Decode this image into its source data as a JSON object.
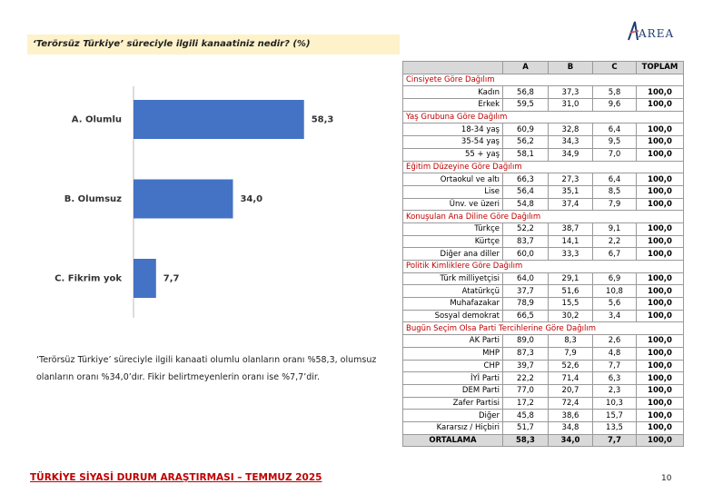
{
  "header": {
    "question": "‘Terörsüz Türkiye’ süreciyle ilgili kanaatiniz nedir? (%)",
    "logo": "AREA"
  },
  "chart_data": {
    "type": "bar",
    "categories": [
      "A. Olumlu",
      "B. Olumsuz",
      "C. Fikrim yok"
    ],
    "values": [
      58.3,
      34.0,
      7.7
    ],
    "value_labels": [
      "58,3",
      "34,0",
      "7,7"
    ],
    "color": "#4472c4"
  },
  "paragraph": "‘Terörsüz Türkiye’ süreciyle ilgili kanaati olumlu olanların oranı %58,3, olumsuz olanların oranı %34,0’dır. Fikir belirtmeyenlerin oranı ise %7,7’dir.",
  "table": {
    "columns": [
      "A",
      "B",
      "C",
      "TOPLAM"
    ],
    "groups": [
      {
        "title": "Cinsiyete Göre Dağılım",
        "rows": [
          [
            "Kadın",
            "56,8",
            "37,3",
            "5,8",
            "100,0"
          ],
          [
            "Erkek",
            "59,5",
            "31,0",
            "9,6",
            "100,0"
          ]
        ]
      },
      {
        "title": "Yaş Grubuna Göre Dağılım",
        "rows": [
          [
            "18-34 yaş",
            "60,9",
            "32,8",
            "6,4",
            "100,0"
          ],
          [
            "35-54 yaş",
            "56,2",
            "34,3",
            "9,5",
            "100,0"
          ],
          [
            "55 + yaş",
            "58,1",
            "34,9",
            "7,0",
            "100,0"
          ]
        ]
      },
      {
        "title": "Eğitim Düzeyine Göre Dağılım",
        "rows": [
          [
            "Ortaokul ve altı",
            "66,3",
            "27,3",
            "6,4",
            "100,0"
          ],
          [
            "Lise",
            "56,4",
            "35,1",
            "8,5",
            "100,0"
          ],
          [
            "Ünv. ve üzeri",
            "54,8",
            "37,4",
            "7,9",
            "100,0"
          ]
        ]
      },
      {
        "title": "Konuşulan Ana Diline Göre Dağılım",
        "rows": [
          [
            "Türkçe",
            "52,2",
            "38,7",
            "9,1",
            "100,0"
          ],
          [
            "Kürtçe",
            "83,7",
            "14,1",
            "2,2",
            "100,0"
          ],
          [
            "Diğer ana diller",
            "60,0",
            "33,3",
            "6,7",
            "100,0"
          ]
        ]
      },
      {
        "title": "Politik Kimliklere Göre Dağılım",
        "rows": [
          [
            "Türk milliyetçisi",
            "64,0",
            "29,1",
            "6,9",
            "100,0"
          ],
          [
            "Atatürkçü",
            "37,7",
            "51,6",
            "10,8",
            "100,0"
          ],
          [
            "Muhafazakar",
            "78,9",
            "15,5",
            "5,6",
            "100,0"
          ],
          [
            "Sosyal demokrat",
            "66,5",
            "30,2",
            "3,4",
            "100,0"
          ]
        ]
      },
      {
        "title": "Bugün Seçim Olsa Parti Tercihlerine Göre Dağılım",
        "rows": [
          [
            "AK Parti",
            "89,0",
            "8,3",
            "2,6",
            "100,0"
          ],
          [
            "MHP",
            "87,3",
            "7,9",
            "4,8",
            "100,0"
          ],
          [
            "CHP",
            "39,7",
            "52,6",
            "7,7",
            "100,0"
          ],
          [
            "İYİ Parti",
            "22,2",
            "71,4",
            "6,3",
            "100,0"
          ],
          [
            "DEM Parti",
            "77,0",
            "20,7",
            "2,3",
            "100,0"
          ],
          [
            "Zafer Partisi",
            "17,2",
            "72,4",
            "10,3",
            "100,0"
          ],
          [
            "Diğer",
            "45,8",
            "38,6",
            "15,7",
            "100,0"
          ],
          [
            "Kararsız / Hiçbiri",
            "51,7",
            "34,8",
            "13,5",
            "100,0"
          ]
        ]
      }
    ],
    "total": [
      "ORTALAMA",
      "58,3",
      "34,0",
      "7,7",
      "100,0"
    ]
  },
  "footer": {
    "title": "TÜRKİYE SİYASİ DURUM ARAŞTIRMASI – TEMMUZ 2025",
    "page": "10"
  }
}
